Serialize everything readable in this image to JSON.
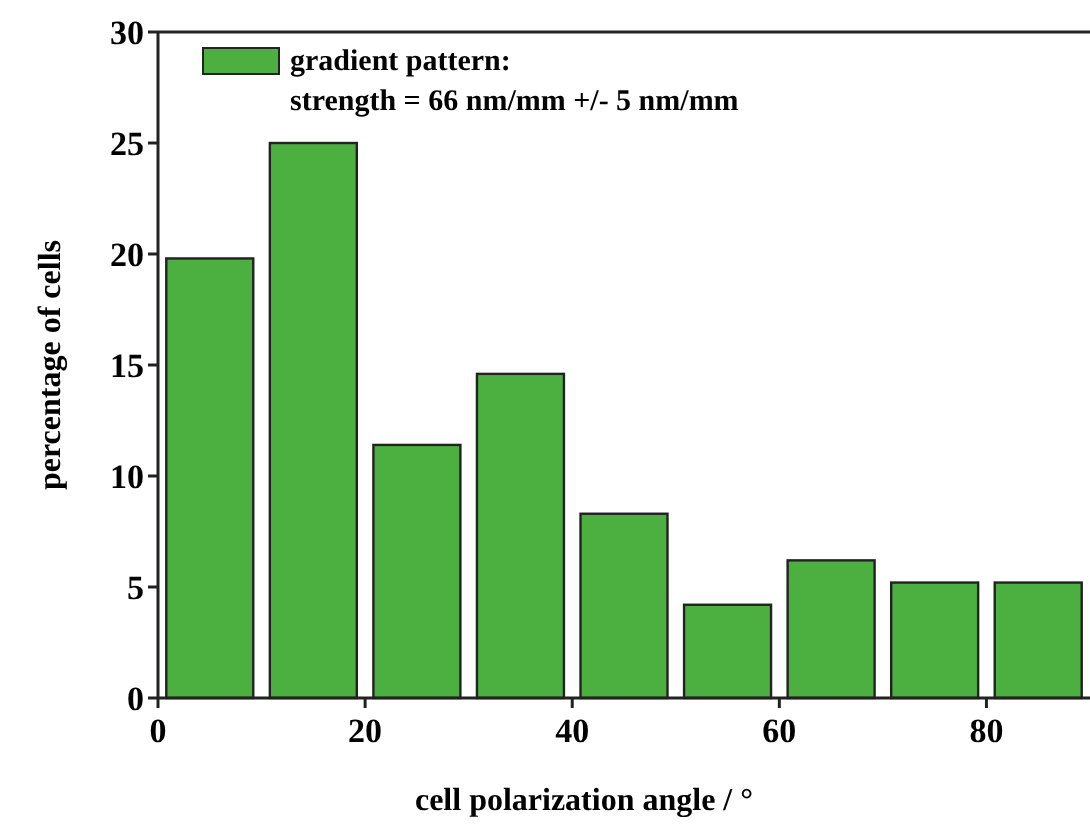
{
  "chart_data": {
    "type": "histogram",
    "xlabel": "cell polarization angle / °",
    "ylabel": "percentage of cells",
    "bins": [
      0,
      10,
      20,
      30,
      40,
      50,
      60,
      70,
      80,
      90
    ],
    "series": [
      {
        "name": "gradient pattern:\nstrength = 66 nm/mm +/- 5 nm/mm",
        "color": "#4cb040",
        "values": [
          19.8,
          25,
          11.4,
          14.6,
          8.3,
          4.2,
          6.2,
          5.2,
          5.2
        ]
      }
    ],
    "xlim": [
      0,
      90
    ],
    "xticks": [
      0,
      20,
      40,
      60,
      80
    ],
    "ylim": [
      0,
      30
    ],
    "yticks": [
      0,
      5,
      10,
      15,
      20,
      25,
      30
    ],
    "legend": "top left",
    "grid": false
  }
}
